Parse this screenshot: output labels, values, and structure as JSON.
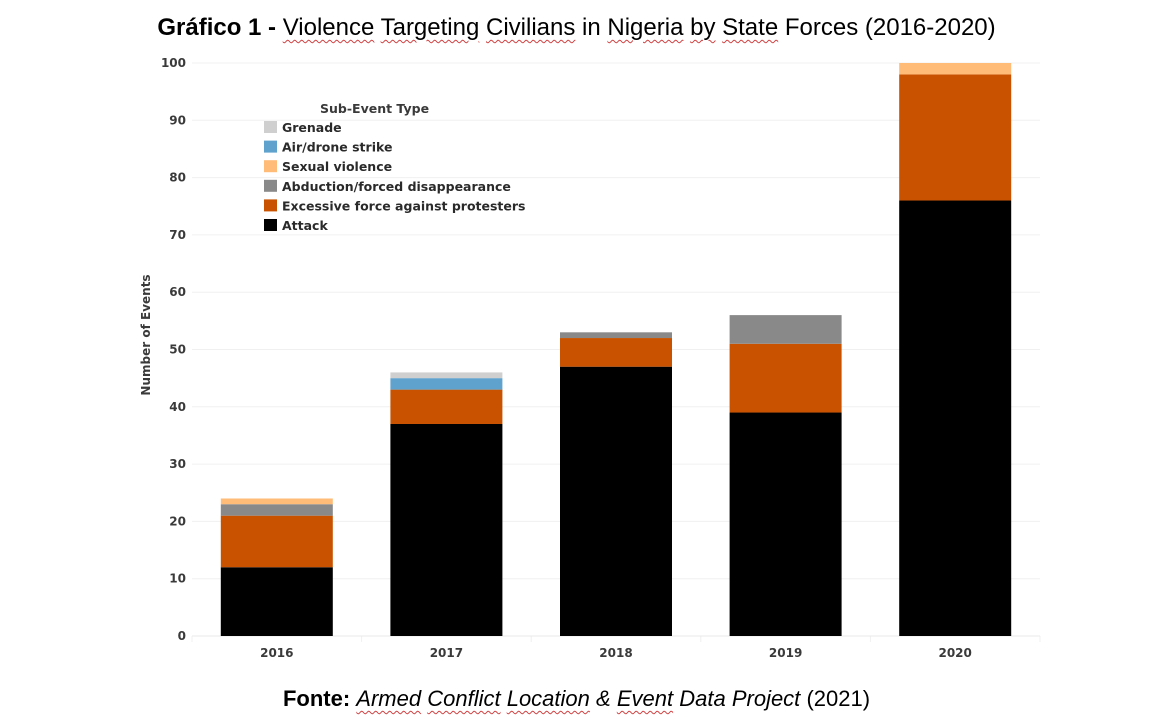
{
  "header": {
    "label": "Gráfico 1 -",
    "words": [
      "Violence",
      "Targeting",
      "Civilians",
      "in",
      "Nigeria",
      "by",
      "State",
      "Forces",
      "(2016-2020)"
    ]
  },
  "footer": {
    "label": "Fonte:",
    "source_words": [
      "Armed",
      "Conflict",
      "Location",
      "&",
      "Event",
      "Data",
      "Project"
    ],
    "year": "(2021)"
  },
  "chart_data": {
    "type": "bar",
    "stacked": true,
    "title": "Violence Targeting Civilians in Nigeria by State Forces (2016-2020)",
    "xlabel": "",
    "ylabel": "Number of Events",
    "ylim": [
      0,
      100
    ],
    "yticks": [
      0,
      10,
      20,
      30,
      40,
      50,
      60,
      70,
      80,
      90,
      100
    ],
    "grid": true,
    "legend_title": "Sub-Event Type",
    "legend_position": "top-left",
    "categories": [
      "2016",
      "2017",
      "2018",
      "2019",
      "2020"
    ],
    "series": [
      {
        "name": "Attack",
        "color": "#000000",
        "values": [
          12,
          37,
          47,
          39,
          76
        ]
      },
      {
        "name": "Excessive force against protesters",
        "color": "#c85200",
        "values": [
          9,
          6,
          5,
          12,
          22
        ]
      },
      {
        "name": "Abduction/forced disappearance",
        "color": "#898989",
        "values": [
          2,
          0,
          1,
          5,
          0
        ]
      },
      {
        "name": "Sexual violence",
        "color": "#ffbc79",
        "values": [
          1,
          0,
          0,
          0,
          2
        ]
      },
      {
        "name": "Air/drone strike",
        "color": "#5fa2ce",
        "values": [
          0,
          2,
          0,
          0,
          0
        ]
      },
      {
        "name": "Grenade",
        "color": "#cfcfcf",
        "values": [
          0,
          1,
          0,
          0,
          0
        ]
      }
    ],
    "legend_order": [
      "Grenade",
      "Air/drone strike",
      "Sexual violence",
      "Abduction/forced disappearance",
      "Excessive force against protesters",
      "Attack"
    ]
  }
}
